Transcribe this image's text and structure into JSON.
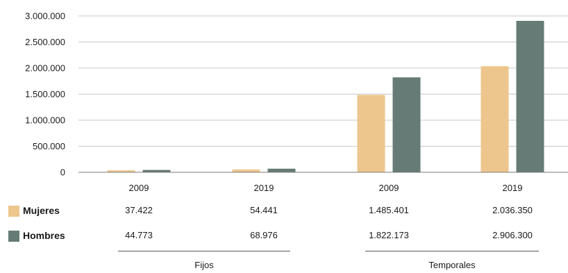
{
  "chart_data": {
    "type": "bar",
    "groups": [
      {
        "label": "Fijos",
        "categories": [
          "2009",
          "2019"
        ]
      },
      {
        "label": "Temporales",
        "categories": [
          "2009",
          "2019"
        ]
      }
    ],
    "categories": [
      "2009",
      "2019",
      "2009",
      "2019"
    ],
    "series": [
      {
        "name": "Mujeres",
        "color": "#edc68d",
        "values": [
          37422,
          54441,
          1485401,
          2036350
        ],
        "labels": [
          "37.422",
          "54.441",
          "1.485.401",
          "2.036.350"
        ]
      },
      {
        "name": "Hombres",
        "color": "#667b75",
        "values": [
          44773,
          68976,
          1822173,
          2906300
        ],
        "labels": [
          "44.773",
          "68.976",
          "1.822.173",
          "2.906.300"
        ]
      }
    ],
    "ylim": [
      0,
      3000000
    ],
    "yticks": [
      0,
      500000,
      1000000,
      1500000,
      2000000,
      2500000,
      3000000
    ],
    "ytick_labels": [
      "0",
      "500.000",
      "1.000.000",
      "1.500.000",
      "2.000.000",
      "2.500.000",
      "3.000.000"
    ],
    "grid": true,
    "legend": "data-table-left"
  }
}
